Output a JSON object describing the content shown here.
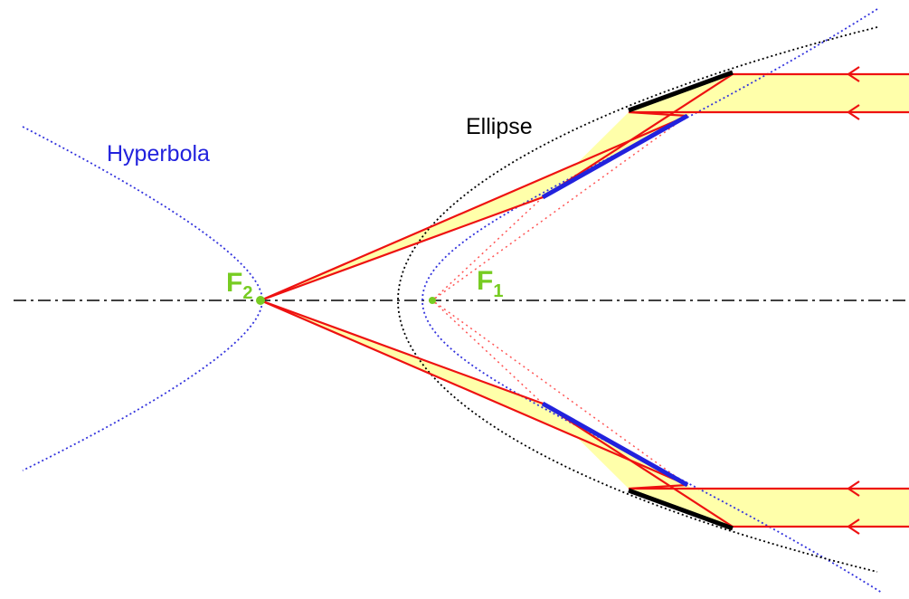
{
  "labels": {
    "hyperbola": "Hyperbola",
    "ellipse": "Ellipse",
    "focus2": {
      "main": "F",
      "sub": "2"
    },
    "focus1": {
      "main": "F",
      "sub": "1"
    }
  }
}
